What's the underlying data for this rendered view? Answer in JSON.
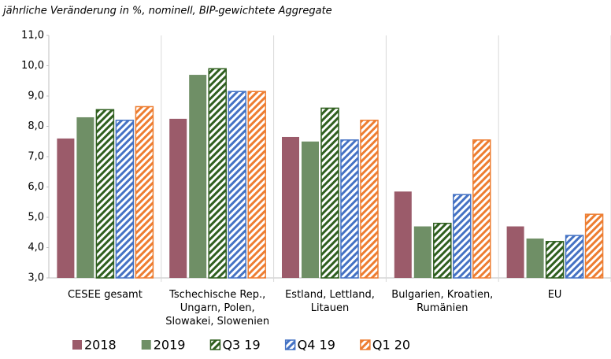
{
  "chart_data": {
    "type": "bar",
    "subtitle": "jährliche Veränderung in %, nominell, BIP-gewichtete Aggregate",
    "categories": [
      "CESEE gesamt",
      "Tschechische Rep.,\nUngarn, Polen,\nSlowakei, Slowenien",
      "Estland, Lettland,\nLitauen",
      "Bulgarien, Kroatien,\nRumänien",
      "EU"
    ],
    "series": [
      {
        "name": "2018",
        "color": "#9b5b6a",
        "hatched": false,
        "values": [
          7.6,
          8.25,
          7.65,
          5.85,
          4.7
        ]
      },
      {
        "name": "2019",
        "color": "#6f8f66",
        "hatched": false,
        "values": [
          8.3,
          9.7,
          7.5,
          4.7,
          4.3
        ]
      },
      {
        "name": "Q3 19",
        "color": "#2f5f1f",
        "hatched": true,
        "values": [
          8.55,
          9.9,
          8.6,
          4.8,
          4.2
        ]
      },
      {
        "name": "Q4 19",
        "color": "#4472c4",
        "hatched": true,
        "values": [
          8.2,
          9.15,
          7.55,
          5.75,
          4.4
        ]
      },
      {
        "name": "Q1 20",
        "color": "#ed7d31",
        "hatched": true,
        "values": [
          8.65,
          9.15,
          8.2,
          7.55,
          5.1
        ]
      }
    ],
    "ylim": [
      3,
      11
    ],
    "yticks": [
      {
        "value": 3,
        "label": "3,0"
      },
      {
        "value": 4,
        "label": "4,0"
      },
      {
        "value": 5,
        "label": "5,0"
      },
      {
        "value": 6,
        "label": "6,0"
      },
      {
        "value": 7,
        "label": "7,0"
      },
      {
        "value": 8,
        "label": "8,0"
      },
      {
        "value": 9,
        "label": "9,0"
      },
      {
        "value": 10,
        "label": "10,0"
      },
      {
        "value": 11,
        "label": "11,0"
      }
    ],
    "grid": false
  }
}
